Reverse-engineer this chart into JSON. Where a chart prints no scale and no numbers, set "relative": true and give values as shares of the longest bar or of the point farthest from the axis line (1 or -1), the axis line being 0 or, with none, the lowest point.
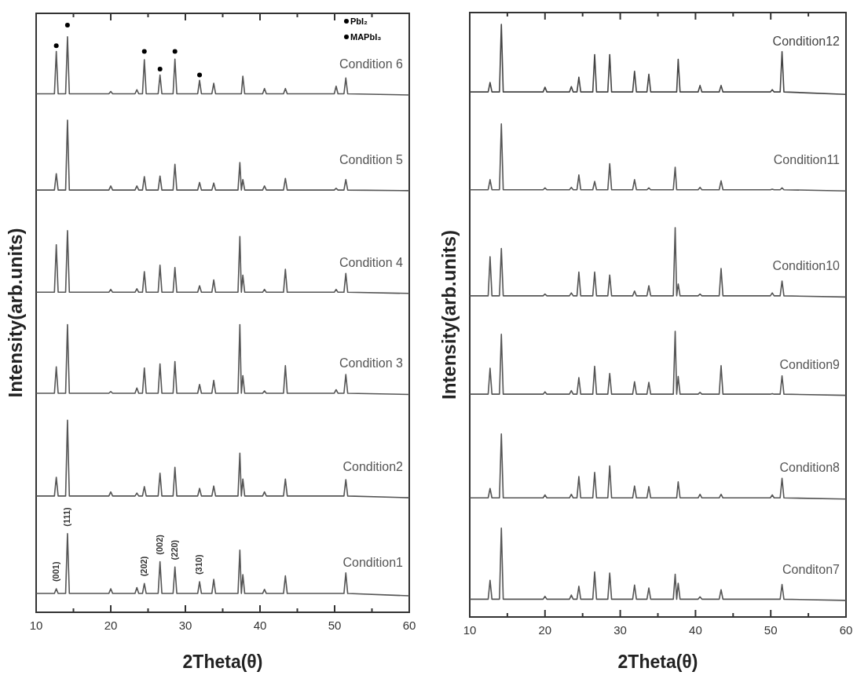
{
  "chart_data": [
    {
      "type": "line",
      "xlabel": "2Theta(θ)",
      "ylabel": "Intensity(arb.units)",
      "relative": true,
      "legend": "top right",
      "xlim": [
        10,
        60
      ],
      "xticks": [
        10,
        {
          "value": 15,
          "label": null
        },
        20,
        {
          "value": 25,
          "label": null
        },
        30,
        {
          "value": 35,
          "label": null
        },
        40,
        {
          "value": 45,
          "label": null
        },
        50,
        {
          "value": 55,
          "label": null
        },
        60
      ],
      "x": [
        10,
        12.45,
        12.7,
        12.95,
        13.95,
        14.2,
        14.45,
        19.75,
        20,
        20.25,
        23.25,
        23.5,
        23.75,
        24.25,
        24.5,
        24.75,
        26.35,
        26.6,
        26.85,
        28.35,
        28.6,
        28.85,
        31.65,
        31.9,
        32.15,
        33.55,
        33.8,
        34.05,
        37.05,
        37.3,
        37.5,
        37.7,
        37.95,
        40.35,
        40.6,
        40.85,
        43.15,
        43.4,
        43.65,
        49.95,
        50.2,
        50.45,
        51.25,
        51.5,
        51.75,
        60
      ],
      "annotations": [
        {
          "text": "(001)",
          "x": 12.7,
          "y": 0.04
        },
        {
          "text": "(111)",
          "x": 14.2,
          "y": 0.134
        },
        {
          "text": "(202)",
          "x": 24.5,
          "y": 0.049
        },
        {
          "text": "(002)",
          "x": 26.6,
          "y": 0.086
        },
        {
          "text": "(220)",
          "x": 28.6,
          "y": 0.077
        },
        {
          "text": "(310)",
          "x": 31.9,
          "y": 0.052
        }
      ],
      "series": [
        {
          "name": "Condition1",
          "color": "#555555",
          "values": [
            0.032,
            0.032,
            0.04,
            0.032,
            0.032,
            0.134,
            0.032,
            0.032,
            0.04,
            0.032,
            0.032,
            0.042,
            0.032,
            0.032,
            0.049,
            0.032,
            0.032,
            0.086,
            0.032,
            0.032,
            0.077,
            0.032,
            0.032,
            0.052,
            0.032,
            0.032,
            0.056,
            0.032,
            0.032,
            0.106,
            0.032,
            0.064,
            0.032,
            0.032,
            0.039,
            0.032,
            0.032,
            0.062,
            0.032,
            0.032,
            0.032,
            0.032,
            0.032,
            0.067,
            0.032,
            0.028
          ]
        },
        {
          "name": "Condition2",
          "color": "#555555",
          "values": [
            0.198,
            0.198,
            0.23,
            0.198,
            0.198,
            0.327,
            0.198,
            0.198,
            0.205,
            0.198,
            0.198,
            0.203,
            0.198,
            0.198,
            0.214,
            0.198,
            0.198,
            0.237,
            0.198,
            0.198,
            0.247,
            0.198,
            0.198,
            0.211,
            0.198,
            0.198,
            0.215,
            0.198,
            0.198,
            0.271,
            0.198,
            0.227,
            0.198,
            0.198,
            0.205,
            0.198,
            0.198,
            0.227,
            0.198,
            0.198,
            0.198,
            0.198,
            0.198,
            0.226,
            0.198,
            0.195
          ]
        },
        {
          "name": "Condition 3",
          "color": "#555555",
          "values": [
            0.373,
            0.373,
            0.418,
            0.373,
            0.373,
            0.49,
            0.373,
            0.373,
            0.376,
            0.373,
            0.373,
            0.382,
            0.373,
            0.373,
            0.416,
            0.373,
            0.373,
            0.423,
            0.373,
            0.373,
            0.427,
            0.373,
            0.373,
            0.388,
            0.373,
            0.373,
            0.395,
            0.373,
            0.373,
            0.49,
            0.373,
            0.403,
            0.373,
            0.373,
            0.377,
            0.373,
            0.373,
            0.42,
            0.373,
            0.373,
            0.379,
            0.373,
            0.373,
            0.405,
            0.373,
            0.371
          ]
        },
        {
          "name": "Condition 4",
          "color": "#555555",
          "values": [
            0.545,
            0.545,
            0.626,
            0.545,
            0.545,
            0.65,
            0.545,
            0.545,
            0.55,
            0.545,
            0.545,
            0.551,
            0.545,
            0.545,
            0.58,
            0.545,
            0.545,
            0.591,
            0.545,
            0.545,
            0.587,
            0.545,
            0.545,
            0.556,
            0.545,
            0.545,
            0.566,
            0.545,
            0.545,
            0.64,
            0.545,
            0.574,
            0.545,
            0.545,
            0.55,
            0.545,
            0.545,
            0.584,
            0.545,
            0.545,
            0.55,
            0.545,
            0.545,
            0.577,
            0.545,
            0.543
          ]
        },
        {
          "name": "Condition 5",
          "color": "#555555",
          "values": [
            0.719,
            0.719,
            0.747,
            0.719,
            0.719,
            0.838,
            0.719,
            0.719,
            0.726,
            0.719,
            0.719,
            0.726,
            0.719,
            0.719,
            0.742,
            0.719,
            0.719,
            0.743,
            0.719,
            0.719,
            0.763,
            0.719,
            0.719,
            0.732,
            0.719,
            0.719,
            0.731,
            0.719,
            0.719,
            0.766,
            0.719,
            0.737,
            0.719,
            0.719,
            0.726,
            0.719,
            0.719,
            0.739,
            0.719,
            0.719,
            0.722,
            0.719,
            0.719,
            0.737,
            0.719,
            0.718
          ]
        },
        {
          "name": "Condition 6",
          "color": "#555555",
          "values": [
            0.883,
            0.883,
            0.955,
            0.883,
            0.883,
            0.98,
            0.883,
            0.883,
            0.887,
            0.883,
            0.883,
            0.89,
            0.883,
            0.883,
            0.941,
            0.883,
            0.883,
            0.915,
            0.883,
            0.883,
            0.942,
            0.883,
            0.883,
            0.906,
            0.883,
            0.883,
            0.901,
            0.883,
            0.883,
            0.883,
            0.883,
            0.913,
            0.883,
            0.883,
            0.892,
            0.883,
            0.883,
            0.892,
            0.883,
            0.883,
            0.896,
            0.883,
            0.883,
            0.91,
            0.883,
            0.881
          ]
        },
        {
          "name": "PbI₂",
          "type": "scatter",
          "color": "#000000",
          "marker": "circle",
          "x": [
            12.7,
            26.6
          ],
          "values": [
            0.965,
            0.925
          ]
        },
        {
          "name": "MAPbI₃",
          "type": "scatter",
          "color": "#000000",
          "marker": "circle",
          "x": [
            14.2,
            24.5,
            28.6,
            31.9
          ],
          "values": [
            1.0,
            0.955,
            0.955,
            0.915
          ]
        }
      ]
    },
    {
      "type": "line",
      "xlabel": "2Theta(θ)",
      "ylabel": "Intensity(arb.units)",
      "relative": true,
      "xlim": [
        10,
        60
      ],
      "xticks": [
        10,
        {
          "value": 15,
          "label": null
        },
        20,
        {
          "value": 25,
          "label": null
        },
        30,
        {
          "value": 35,
          "label": null
        },
        40,
        {
          "value": 45,
          "label": null
        },
        50,
        {
          "value": 55,
          "label": null
        },
        60
      ],
      "x": [
        10,
        12.45,
        12.7,
        12.95,
        13.95,
        14.2,
        14.45,
        19.75,
        20,
        20.25,
        23.25,
        23.5,
        23.75,
        24.25,
        24.5,
        24.75,
        26.35,
        26.6,
        26.85,
        28.35,
        28.6,
        28.85,
        31.65,
        31.9,
        32.15,
        33.55,
        33.8,
        34.05,
        37.05,
        37.3,
        37.5,
        37.7,
        37.95,
        40.35,
        40.6,
        40.85,
        43.15,
        43.4,
        43.65,
        49.95,
        50.2,
        50.45,
        51.25,
        51.5,
        51.75,
        60
      ],
      "series": [
        {
          "name": "Conditon7",
          "color": "#555555",
          "values": [
            0.03,
            0.03,
            0.062,
            0.03,
            0.03,
            0.15,
            0.03,
            0.03,
            0.035,
            0.03,
            0.03,
            0.037,
            0.03,
            0.03,
            0.052,
            0.03,
            0.03,
            0.076,
            0.03,
            0.03,
            0.074,
            0.03,
            0.03,
            0.054,
            0.03,
            0.03,
            0.049,
            0.03,
            0.03,
            0.072,
            0.03,
            0.057,
            0.03,
            0.03,
            0.034,
            0.03,
            0.03,
            0.046,
            0.03,
            0.03,
            0.03,
            0.03,
            0.03,
            0.055,
            0.03,
            0.028
          ]
        },
        {
          "name": "Condition8",
          "color": "#555555",
          "values": [
            0.201,
            0.201,
            0.217,
            0.201,
            0.201,
            0.309,
            0.201,
            0.201,
            0.206,
            0.201,
            0.201,
            0.207,
            0.201,
            0.201,
            0.237,
            0.201,
            0.201,
            0.244,
            0.201,
            0.201,
            0.255,
            0.201,
            0.201,
            0.221,
            0.201,
            0.201,
            0.22,
            0.201,
            0.201,
            0.201,
            0.201,
            0.228,
            0.201,
            0.201,
            0.207,
            0.201,
            0.201,
            0.207,
            0.201,
            0.201,
            0.206,
            0.201,
            0.201,
            0.234,
            0.201,
            0.199
          ]
        },
        {
          "name": "Condition9",
          "color": "#555555",
          "values": [
            0.376,
            0.376,
            0.42,
            0.376,
            0.376,
            0.477,
            0.376,
            0.376,
            0.38,
            0.376,
            0.376,
            0.382,
            0.376,
            0.376,
            0.404,
            0.376,
            0.376,
            0.423,
            0.376,
            0.376,
            0.411,
            0.376,
            0.376,
            0.397,
            0.376,
            0.376,
            0.396,
            0.376,
            0.376,
            0.482,
            0.376,
            0.406,
            0.376,
            0.376,
            0.379,
            0.376,
            0.376,
            0.424,
            0.376,
            0.376,
            0.377,
            0.376,
            0.376,
            0.407,
            0.376,
            0.374
          ]
        },
        {
          "name": "Condition10",
          "color": "#555555",
          "values": [
            0.542,
            0.542,
            0.608,
            0.542,
            0.542,
            0.622,
            0.542,
            0.542,
            0.545,
            0.542,
            0.542,
            0.547,
            0.542,
            0.542,
            0.582,
            0.542,
            0.542,
            0.582,
            0.542,
            0.542,
            0.577,
            0.542,
            0.542,
            0.55,
            0.542,
            0.542,
            0.559,
            0.542,
            0.542,
            0.657,
            0.542,
            0.562,
            0.542,
            0.542,
            0.545,
            0.542,
            0.542,
            0.588,
            0.542,
            0.542,
            0.547,
            0.542,
            0.542,
            0.567,
            0.542,
            0.54
          ]
        },
        {
          "name": "Condition11",
          "color": "#555555",
          "values": [
            0.721,
            0.721,
            0.738,
            0.721,
            0.721,
            0.832,
            0.721,
            0.721,
            0.724,
            0.721,
            0.721,
            0.725,
            0.721,
            0.721,
            0.746,
            0.721,
            0.721,
            0.735,
            0.721,
            0.721,
            0.765,
            0.721,
            0.721,
            0.738,
            0.721,
            0.721,
            0.724,
            0.721,
            0.721,
            0.759,
            0.721,
            0.721,
            0.721,
            0.721,
            0.725,
            0.721,
            0.721,
            0.736,
            0.721,
            0.721,
            0.722,
            0.721,
            0.721,
            0.724,
            0.721,
            0.719
          ]
        },
        {
          "name": "Condition12",
          "color": "#444444",
          "values": [
            0.886,
            0.886,
            0.902,
            0.886,
            0.886,
            1.0,
            0.886,
            0.886,
            0.894,
            0.886,
            0.886,
            0.895,
            0.886,
            0.886,
            0.911,
            0.886,
            0.886,
            0.949,
            0.886,
            0.886,
            0.949,
            0.886,
            0.886,
            0.921,
            0.886,
            0.886,
            0.916,
            0.886,
            0.886,
            0.886,
            0.886,
            0.941,
            0.886,
            0.886,
            0.897,
            0.886,
            0.886,
            0.897,
            0.886,
            0.886,
            0.89,
            0.886,
            0.886,
            0.954,
            0.886,
            0.882
          ]
        }
      ]
    }
  ]
}
